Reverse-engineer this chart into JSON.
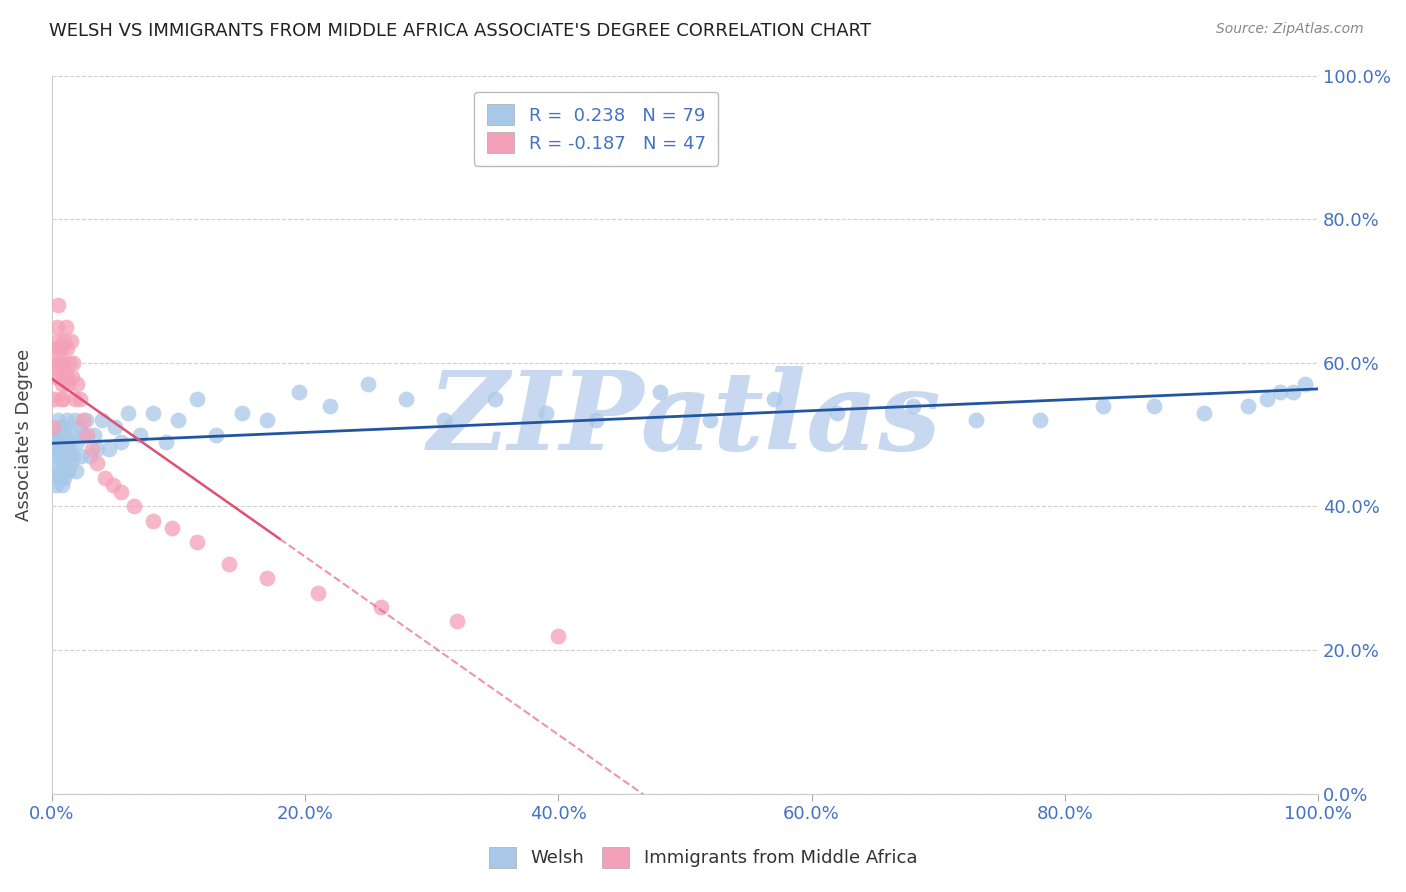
{
  "title": "WELSH VS IMMIGRANTS FROM MIDDLE AFRICA ASSOCIATE'S DEGREE CORRELATION CHART",
  "source": "Source: ZipAtlas.com",
  "ylabel": "Associate's Degree",
  "background_color": "#ffffff",
  "watermark": "ZIPatlas",
  "watermark_color": "#c8d8f0",
  "tick_label_color": "#4472c4",
  "grid_color": "#d0d0d0",
  "ytick_labels": [
    "0.0%",
    "20.0%",
    "40.0%",
    "60.0%",
    "80.0%",
    "100.0%"
  ],
  "ytick_values": [
    0.0,
    0.2,
    0.4,
    0.6,
    0.8,
    1.0
  ],
  "xtick_labels": [
    "0.0%",
    "20.0%",
    "40.0%",
    "60.0%",
    "80.0%",
    "100.0%"
  ],
  "xtick_values": [
    0.0,
    0.2,
    0.4,
    0.6,
    0.8,
    1.0
  ],
  "welsh_color": "#a8c8e8",
  "immigrant_color": "#f4a0b8",
  "welsh_R": 0.238,
  "welsh_N": 79,
  "immigrant_R": -0.187,
  "immigrant_N": 47,
  "welsh_line_color": "#2255a0",
  "immigrant_line_color": "#e05070",
  "welsh_x": [
    0.001,
    0.002,
    0.002,
    0.003,
    0.003,
    0.004,
    0.004,
    0.005,
    0.005,
    0.005,
    0.006,
    0.006,
    0.007,
    0.007,
    0.007,
    0.008,
    0.008,
    0.008,
    0.009,
    0.009,
    0.01,
    0.01,
    0.01,
    0.011,
    0.011,
    0.012,
    0.012,
    0.013,
    0.013,
    0.014,
    0.015,
    0.016,
    0.017,
    0.018,
    0.019,
    0.02,
    0.022,
    0.023,
    0.025,
    0.027,
    0.03,
    0.033,
    0.036,
    0.04,
    0.045,
    0.05,
    0.055,
    0.06,
    0.07,
    0.08,
    0.09,
    0.1,
    0.115,
    0.13,
    0.15,
    0.17,
    0.195,
    0.22,
    0.25,
    0.28,
    0.31,
    0.35,
    0.39,
    0.43,
    0.48,
    0.52,
    0.57,
    0.62,
    0.68,
    0.73,
    0.78,
    0.83,
    0.87,
    0.91,
    0.945,
    0.96,
    0.97,
    0.98,
    0.99
  ],
  "welsh_y": [
    0.47,
    0.5,
    0.45,
    0.48,
    0.43,
    0.5,
    0.44,
    0.47,
    0.49,
    0.52,
    0.45,
    0.5,
    0.44,
    0.48,
    0.51,
    0.43,
    0.47,
    0.5,
    0.46,
    0.49,
    0.44,
    0.48,
    0.51,
    0.45,
    0.5,
    0.47,
    0.52,
    0.45,
    0.49,
    0.48,
    0.46,
    0.5,
    0.47,
    0.52,
    0.45,
    0.49,
    0.51,
    0.47,
    0.5,
    0.52,
    0.47,
    0.5,
    0.48,
    0.52,
    0.48,
    0.51,
    0.49,
    0.53,
    0.5,
    0.53,
    0.49,
    0.52,
    0.55,
    0.5,
    0.53,
    0.52,
    0.56,
    0.54,
    0.57,
    0.55,
    0.52,
    0.55,
    0.53,
    0.52,
    0.56,
    0.52,
    0.55,
    0.53,
    0.54,
    0.52,
    0.52,
    0.54,
    0.54,
    0.53,
    0.54,
    0.55,
    0.56,
    0.56,
    0.57
  ],
  "immigrant_x": [
    0.001,
    0.002,
    0.002,
    0.003,
    0.003,
    0.004,
    0.004,
    0.005,
    0.005,
    0.006,
    0.006,
    0.007,
    0.007,
    0.008,
    0.008,
    0.009,
    0.009,
    0.01,
    0.01,
    0.011,
    0.012,
    0.012,
    0.013,
    0.014,
    0.015,
    0.016,
    0.017,
    0.018,
    0.02,
    0.022,
    0.025,
    0.028,
    0.032,
    0.036,
    0.042,
    0.048,
    0.055,
    0.065,
    0.08,
    0.095,
    0.115,
    0.14,
    0.17,
    0.21,
    0.26,
    0.32,
    0.4
  ],
  "immigrant_y": [
    0.51,
    0.6,
    0.55,
    0.62,
    0.58,
    0.65,
    0.6,
    0.68,
    0.63,
    0.58,
    0.62,
    0.55,
    0.6,
    0.57,
    0.62,
    0.55,
    0.6,
    0.58,
    0.63,
    0.65,
    0.58,
    0.62,
    0.57,
    0.6,
    0.63,
    0.58,
    0.6,
    0.55,
    0.57,
    0.55,
    0.52,
    0.5,
    0.48,
    0.46,
    0.44,
    0.43,
    0.42,
    0.4,
    0.38,
    0.37,
    0.35,
    0.32,
    0.3,
    0.28,
    0.26,
    0.24,
    0.22
  ]
}
